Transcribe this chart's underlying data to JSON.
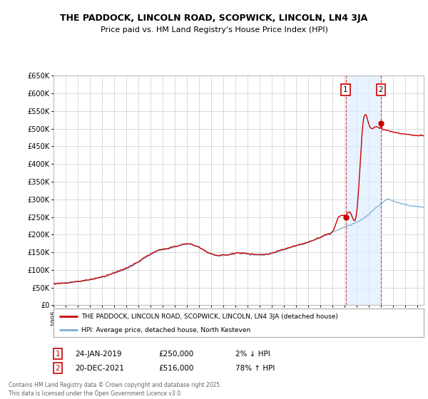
{
  "title": "THE PADDOCK, LINCOLN ROAD, SCOPWICK, LINCOLN, LN4 3JA",
  "subtitle": "Price paid vs. HM Land Registry's House Price Index (HPI)",
  "ylabel_ticks": [
    "£0",
    "£50K",
    "£100K",
    "£150K",
    "£200K",
    "£250K",
    "£300K",
    "£350K",
    "£400K",
    "£450K",
    "£500K",
    "£550K",
    "£600K",
    "£650K"
  ],
  "ytick_values": [
    0,
    50000,
    100000,
    150000,
    200000,
    250000,
    300000,
    350000,
    400000,
    450000,
    500000,
    550000,
    600000,
    650000
  ],
  "background_color": "#ffffff",
  "plot_bg_color": "#ffffff",
  "grid_color": "#cccccc",
  "red_line_color": "#cc0000",
  "blue_line_color": "#7aafd4",
  "shade_color": "#ddeeff",
  "annotation_bg": "#ffffff",
  "annotation_border": "#cc0000",
  "legend_label_red": "THE PADDOCK, LINCOLN ROAD, SCOPWICK, LINCOLN, LN4 3JA (detached house)",
  "legend_label_blue": "HPI: Average price, detached house, North Kesteven",
  "sale1_date": "24-JAN-2019",
  "sale1_price": "£250,000",
  "sale1_pct": "2% ↓ HPI",
  "sale1_year": 2019.07,
  "sale1_value": 250000,
  "sale2_date": "20-DEC-2021",
  "sale2_price": "£516,000",
  "sale2_pct": "78% ↑ HPI",
  "sale2_year": 2021.97,
  "sale2_value": 516000,
  "footer": "Contains HM Land Registry data © Crown copyright and database right 2025.\nThis data is licensed under the Open Government Licence v3.0.",
  "xmin": 1995,
  "xmax": 2025.5,
  "ymin": 0,
  "ymax": 650000
}
